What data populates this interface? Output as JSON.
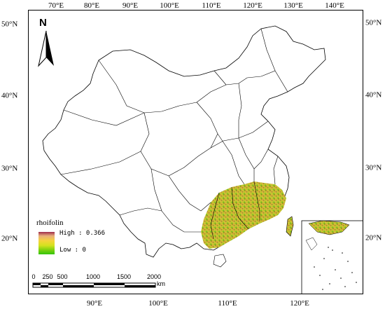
{
  "map": {
    "lon_ticks_top": [
      "70°E",
      "80°E",
      "90°E",
      "100°E",
      "110°E",
      "120°E",
      "130°E",
      "140°E"
    ],
    "lon_ticks_bottom": [
      "90°E",
      "100°E",
      "110°E",
      "120°E"
    ],
    "lat_ticks_left": [
      "50°N",
      "40°N",
      "30°N",
      "20°N"
    ],
    "lat_ticks_right": [
      "50°N",
      "40°N",
      "30°N",
      "20°N"
    ],
    "north_label": "N",
    "legend": {
      "title": "rhoifolin",
      "high_label": "High : 0.366",
      "low_label": "Low : 0",
      "high_value": 0.366,
      "low_value": 0,
      "colors": [
        "#9d2c4c",
        "#e8b07a",
        "#f5d43a",
        "#d5e21f",
        "#7fd10f",
        "#33c40c"
      ]
    },
    "scale_bar": {
      "labels": [
        "0",
        "250",
        "500",
        "1000",
        "1500",
        "2000"
      ],
      "unit": "km"
    },
    "colors": {
      "boundary": "#000000",
      "suitability_high": "#9d2c4c",
      "suitability_mid": "#e0c23a",
      "suitability_low": "#33c40c"
    }
  }
}
